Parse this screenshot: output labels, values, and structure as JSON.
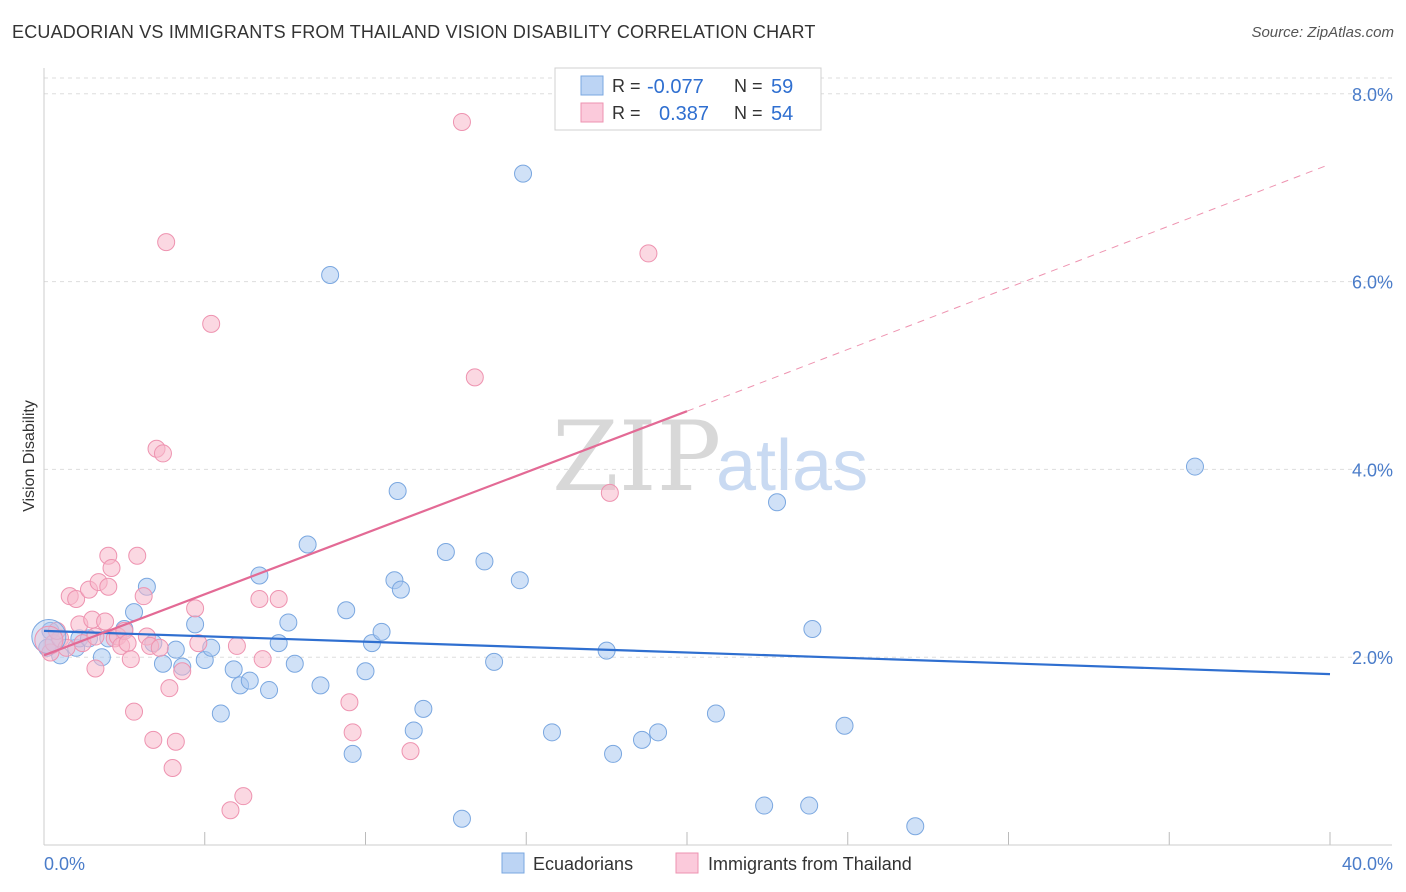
{
  "title": "ECUADORIAN VS IMMIGRANTS FROM THAILAND VISION DISABILITY CORRELATION CHART",
  "source": "Source: ZipAtlas.com",
  "watermark": {
    "zip": "ZIP",
    "atlas": "atlas"
  },
  "colors": {
    "blue_fill": "#a9c8f0",
    "blue_stroke": "#7aa7e0",
    "blue_line": "#2f6fd0",
    "pink_fill": "#f7b8cb",
    "pink_stroke": "#ee93b0",
    "pink_line": "#e36a95",
    "grid": "#dddddd",
    "tick_text": "#4a7cc9"
  },
  "legend": {
    "rows": [
      {
        "r_label": "R =",
        "r_value": "-0.077",
        "n_label": "N =",
        "n_value": "59"
      },
      {
        "r_label": "R =",
        "r_value": "0.387",
        "n_label": "N =",
        "n_value": "54"
      }
    ]
  },
  "chart_data": {
    "type": "scatter",
    "title": "ECUADORIAN VS IMMIGRANTS FROM THAILAND VISION DISABILITY CORRELATION CHART",
    "xlabel": "",
    "ylabel": "Vision Disability",
    "xlim": [
      0,
      40
    ],
    "ylim": [
      0,
      8.2
    ],
    "x_tick_labels": [
      "0.0%",
      "40.0%"
    ],
    "y_ticks": [
      2,
      4,
      6,
      8
    ],
    "y_tick_labels": [
      "2.0%",
      "4.0%",
      "6.0%",
      "8.0%"
    ],
    "grid": true,
    "legend_bottom": [
      "Ecuadorians",
      "Immigrants from Thailand"
    ],
    "series": [
      {
        "name": "Ecuadorians",
        "r": -0.077,
        "n": 59,
        "trend": {
          "x": [
            0,
            40
          ],
          "y": [
            2.28,
            1.82
          ],
          "dashed_extension": false
        },
        "points": [
          [
            0.2,
            2.28
          ],
          [
            0.5,
            2.02
          ],
          [
            1.0,
            2.1
          ],
          [
            1.1,
            2.2
          ],
          [
            1.4,
            2.2
          ],
          [
            2.0,
            2.2
          ],
          [
            2.5,
            2.3
          ],
          [
            2.8,
            2.48
          ],
          [
            3.2,
            2.75
          ],
          [
            3.4,
            2.15
          ],
          [
            3.7,
            1.93
          ],
          [
            4.1,
            2.08
          ],
          [
            4.3,
            1.9
          ],
          [
            4.7,
            2.35
          ],
          [
            5.0,
            1.97
          ],
          [
            5.2,
            2.1
          ],
          [
            5.5,
            1.4
          ],
          [
            5.9,
            1.87
          ],
          [
            6.1,
            1.7
          ],
          [
            6.4,
            1.75
          ],
          [
            6.7,
            2.87
          ],
          [
            7.0,
            1.65
          ],
          [
            7.3,
            2.15
          ],
          [
            7.6,
            2.37
          ],
          [
            7.8,
            1.93
          ],
          [
            8.2,
            3.2
          ],
          [
            8.6,
            1.7
          ],
          [
            8.9,
            6.07
          ],
          [
            9.4,
            2.5
          ],
          [
            9.6,
            0.97
          ],
          [
            10.0,
            1.85
          ],
          [
            10.2,
            2.15
          ],
          [
            10.5,
            2.27
          ],
          [
            10.9,
            2.82
          ],
          [
            11.1,
            2.72
          ],
          [
            11.0,
            3.77
          ],
          [
            11.5,
            1.22
          ],
          [
            11.8,
            1.45
          ],
          [
            12.5,
            3.12
          ],
          [
            13.0,
            0.28
          ],
          [
            13.7,
            3.02
          ],
          [
            14.0,
            1.95
          ],
          [
            14.8,
            2.82
          ],
          [
            14.9,
            7.15
          ],
          [
            15.8,
            1.2
          ],
          [
            17.5,
            2.07
          ],
          [
            17.7,
            0.97
          ],
          [
            18.6,
            1.12
          ],
          [
            19.1,
            1.2
          ],
          [
            20.9,
            1.4
          ],
          [
            22.8,
            3.65
          ],
          [
            22.4,
            0.42
          ],
          [
            23.8,
            0.42
          ],
          [
            23.9,
            2.3
          ],
          [
            24.9,
            1.27
          ],
          [
            27.1,
            0.2
          ],
          [
            35.8,
            4.03
          ],
          [
            0.1,
            2.1
          ],
          [
            1.8,
            2.0
          ]
        ]
      },
      {
        "name": "Immigrants from Thailand",
        "r": 0.387,
        "n": 54,
        "trend": {
          "x": [
            0,
            20
          ],
          "y": [
            2.02,
            4.62
          ],
          "dashed_extension": {
            "x": [
              20,
              40
            ],
            "y": [
              4.62,
              7.25
            ]
          }
        },
        "points": [
          [
            0.2,
            2.05
          ],
          [
            0.3,
            2.15
          ],
          [
            0.5,
            2.2
          ],
          [
            0.7,
            2.1
          ],
          [
            0.8,
            2.65
          ],
          [
            1.0,
            2.62
          ],
          [
            1.1,
            2.35
          ],
          [
            1.2,
            2.15
          ],
          [
            1.4,
            2.72
          ],
          [
            1.5,
            2.4
          ],
          [
            1.6,
            2.22
          ],
          [
            1.7,
            2.8
          ],
          [
            1.6,
            1.88
          ],
          [
            1.9,
            2.38
          ],
          [
            2.0,
            2.75
          ],
          [
            2.2,
            2.2
          ],
          [
            2.0,
            3.08
          ],
          [
            2.1,
            2.95
          ],
          [
            2.3,
            2.22
          ],
          [
            2.4,
            2.12
          ],
          [
            2.5,
            2.28
          ],
          [
            2.6,
            2.15
          ],
          [
            2.7,
            1.98
          ],
          [
            2.8,
            1.42
          ],
          [
            2.9,
            3.08
          ],
          [
            3.1,
            2.65
          ],
          [
            3.2,
            2.22
          ],
          [
            3.3,
            2.12
          ],
          [
            3.4,
            1.12
          ],
          [
            3.5,
            4.22
          ],
          [
            3.6,
            2.1
          ],
          [
            3.7,
            4.17
          ],
          [
            3.8,
            6.42
          ],
          [
            3.9,
            1.67
          ],
          [
            4.0,
            0.82
          ],
          [
            4.1,
            1.1
          ],
          [
            4.3,
            1.85
          ],
          [
            4.7,
            2.52
          ],
          [
            4.8,
            2.15
          ],
          [
            5.2,
            5.55
          ],
          [
            5.8,
            0.37
          ],
          [
            6.0,
            2.12
          ],
          [
            6.2,
            0.52
          ],
          [
            6.7,
            2.62
          ],
          [
            6.8,
            1.98
          ],
          [
            7.3,
            2.62
          ],
          [
            9.5,
            1.52
          ],
          [
            9.6,
            1.2
          ],
          [
            11.4,
            1.0
          ],
          [
            13.0,
            7.7
          ],
          [
            13.4,
            4.98
          ],
          [
            17.6,
            3.75
          ],
          [
            18.8,
            6.3
          ],
          [
            0.4,
            2.28
          ]
        ]
      }
    ]
  }
}
